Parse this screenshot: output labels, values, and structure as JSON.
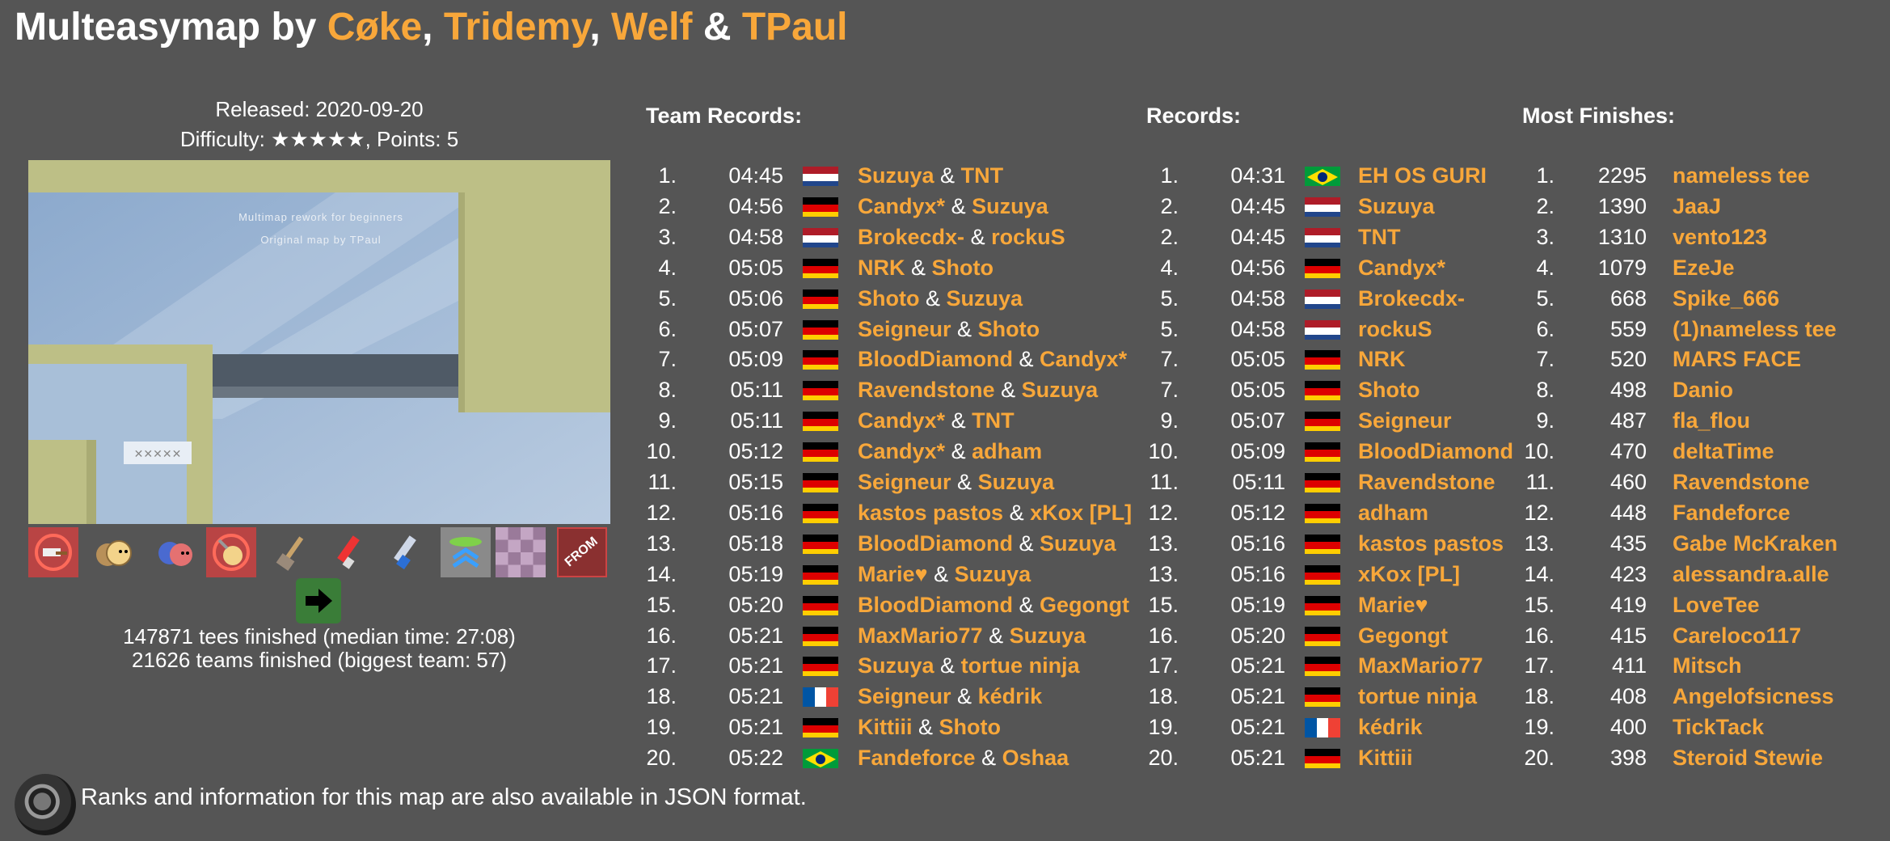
{
  "title": {
    "prefix": "Multeasymap by ",
    "authors": [
      "Cøke",
      "Tridemy",
      "Welf",
      "TPaul"
    ],
    "sep1": ", ",
    "sep2": ", ",
    "sep3": " & "
  },
  "info": {
    "released": "Released: 2020-09-20",
    "difficulty": "Difficulty: ★★★★★, Points: 5"
  },
  "map_text": [
    "Multimap rework for beginners",
    "Original map by TPaul"
  ],
  "tiles_icons": [
    "hammer-hit-icon",
    "ninja-jetpack-icon",
    "solo-icon",
    "no-hook-icon",
    "hammer-icon",
    "grenade-icon",
    "laser-icon",
    "jump-icon",
    "checkerboard-icon",
    "from-icon"
  ],
  "tile_from_text": "FROM",
  "stats": {
    "tees": "147871 tees finished (median time: 27:08)",
    "teams": "21626 teams finished (biggest team: 57)"
  },
  "sections": {
    "team": "Team Records:",
    "records": "Records:",
    "finishes": "Most Finishes:"
  },
  "colors": {
    "accent": "#f8a73a",
    "background": "#555555"
  },
  "team_records": [
    {
      "rank": "1.",
      "time": "04:45",
      "flag": "nl",
      "p1": "Suzuya",
      "p2": "TNT"
    },
    {
      "rank": "2.",
      "time": "04:56",
      "flag": "de",
      "p1": "Candyx*",
      "p2": "Suzuya"
    },
    {
      "rank": "3.",
      "time": "04:58",
      "flag": "nl",
      "p1": "Brokecdx-",
      "p2": "rockuS"
    },
    {
      "rank": "4.",
      "time": "05:05",
      "flag": "de",
      "p1": "NRK",
      "p2": "Shoto"
    },
    {
      "rank": "5.",
      "time": "05:06",
      "flag": "de",
      "p1": "Shoto",
      "p2": "Suzuya"
    },
    {
      "rank": "6.",
      "time": "05:07",
      "flag": "de",
      "p1": "Seigneur",
      "p2": "Shoto"
    },
    {
      "rank": "7.",
      "time": "05:09",
      "flag": "de",
      "p1": "BloodDiamond",
      "p2": "Candyx*"
    },
    {
      "rank": "8.",
      "time": "05:11",
      "flag": "de",
      "p1": "Ravendstone",
      "p2": "Suzuya"
    },
    {
      "rank": "9.",
      "time": "05:11",
      "flag": "de",
      "p1": "Candyx*",
      "p2": "TNT"
    },
    {
      "rank": "10.",
      "time": "05:12",
      "flag": "de",
      "p1": "Candyx*",
      "p2": "adham"
    },
    {
      "rank": "11.",
      "time": "05:15",
      "flag": "de",
      "p1": "Seigneur",
      "p2": "Suzuya"
    },
    {
      "rank": "12.",
      "time": "05:16",
      "flag": "de",
      "p1": "kastos pastos",
      "p2": "xKox [PL]"
    },
    {
      "rank": "13.",
      "time": "05:18",
      "flag": "de",
      "p1": "BloodDiamond",
      "p2": "Suzuya"
    },
    {
      "rank": "14.",
      "time": "05:19",
      "flag": "de",
      "p1": "Marie♥",
      "p2": "Suzuya"
    },
    {
      "rank": "15.",
      "time": "05:20",
      "flag": "de",
      "p1": "BloodDiamond",
      "p2": "Gegongt"
    },
    {
      "rank": "16.",
      "time": "05:21",
      "flag": "de",
      "p1": "MaxMario77",
      "p2": "Suzuya"
    },
    {
      "rank": "17.",
      "time": "05:21",
      "flag": "de",
      "p1": "Suzuya",
      "p2": "tortue ninja"
    },
    {
      "rank": "18.",
      "time": "05:21",
      "flag": "fr",
      "p1": "Seigneur",
      "p2": "kédrik"
    },
    {
      "rank": "19.",
      "time": "05:21",
      "flag": "de",
      "p1": "Kittiii",
      "p2": "Shoto"
    },
    {
      "rank": "20.",
      "time": "05:22",
      "flag": "br",
      "p1": "Fandeforce",
      "p2": "Oshaa"
    }
  ],
  "amp": "&",
  "records": [
    {
      "rank": "1.",
      "time": "04:31",
      "flag": "br",
      "name": "EH OS GURI"
    },
    {
      "rank": "2.",
      "time": "04:45",
      "flag": "nl",
      "name": "Suzuya"
    },
    {
      "rank": "2.",
      "time": "04:45",
      "flag": "nl",
      "name": "TNT"
    },
    {
      "rank": "4.",
      "time": "04:56",
      "flag": "de",
      "name": "Candyx*"
    },
    {
      "rank": "5.",
      "time": "04:58",
      "flag": "nl",
      "name": "Brokecdx-"
    },
    {
      "rank": "5.",
      "time": "04:58",
      "flag": "nl",
      "name": "rockuS"
    },
    {
      "rank": "7.",
      "time": "05:05",
      "flag": "de",
      "name": "NRK"
    },
    {
      "rank": "7.",
      "time": "05:05",
      "flag": "de",
      "name": "Shoto"
    },
    {
      "rank": "9.",
      "time": "05:07",
      "flag": "de",
      "name": "Seigneur"
    },
    {
      "rank": "10.",
      "time": "05:09",
      "flag": "de",
      "name": "BloodDiamond"
    },
    {
      "rank": "11.",
      "time": "05:11",
      "flag": "de",
      "name": "Ravendstone"
    },
    {
      "rank": "12.",
      "time": "05:12",
      "flag": "de",
      "name": "adham"
    },
    {
      "rank": "13.",
      "time": "05:16",
      "flag": "de",
      "name": "kastos pastos"
    },
    {
      "rank": "13.",
      "time": "05:16",
      "flag": "de",
      "name": "xKox [PL]"
    },
    {
      "rank": "15.",
      "time": "05:19",
      "flag": "de",
      "name": "Marie♥"
    },
    {
      "rank": "16.",
      "time": "05:20",
      "flag": "de",
      "name": "Gegongt"
    },
    {
      "rank": "17.",
      "time": "05:21",
      "flag": "de",
      "name": "MaxMario77"
    },
    {
      "rank": "18.",
      "time": "05:21",
      "flag": "de",
      "name": "tortue ninja"
    },
    {
      "rank": "19.",
      "time": "05:21",
      "flag": "fr",
      "name": "kédrik"
    },
    {
      "rank": "20.",
      "time": "05:21",
      "flag": "de",
      "name": "Kittiii"
    }
  ],
  "most_finishes": [
    {
      "rank": "1.",
      "count": "2295",
      "name": "nameless tee"
    },
    {
      "rank": "2.",
      "count": "1390",
      "name": "JaaJ"
    },
    {
      "rank": "3.",
      "count": "1310",
      "name": "vento123"
    },
    {
      "rank": "4.",
      "count": "1079",
      "name": "EzeJe"
    },
    {
      "rank": "5.",
      "count": "668",
      "name": "Spike_666"
    },
    {
      "rank": "6.",
      "count": "559",
      "name": "(1)nameless tee"
    },
    {
      "rank": "7.",
      "count": "520",
      "name": "MARS FACE"
    },
    {
      "rank": "8.",
      "count": "498",
      "name": "Danio"
    },
    {
      "rank": "9.",
      "count": "487",
      "name": "fla_flou"
    },
    {
      "rank": "10.",
      "count": "470",
      "name": "deltaTime"
    },
    {
      "rank": "11.",
      "count": "460",
      "name": "Ravendstone"
    },
    {
      "rank": "12.",
      "count": "448",
      "name": "Fandeforce"
    },
    {
      "rank": "13.",
      "count": "435",
      "name": "Gabe McKraken"
    },
    {
      "rank": "14.",
      "count": "423",
      "name": "alessandra.alle"
    },
    {
      "rank": "15.",
      "count": "419",
      "name": "LoveTee"
    },
    {
      "rank": "16.",
      "count": "415",
      "name": "Careloco117"
    },
    {
      "rank": "17.",
      "count": "411",
      "name": "Mitsch"
    },
    {
      "rank": "18.",
      "count": "408",
      "name": "Angelofsicness"
    },
    {
      "rank": "19.",
      "count": "400",
      "name": "TickTack"
    },
    {
      "rank": "20.",
      "count": "398",
      "name": "Steroid Stewie"
    }
  ],
  "footer": {
    "text": "Ranks and information for this map are also available in JSON format.",
    "icon": "json-icon"
  }
}
